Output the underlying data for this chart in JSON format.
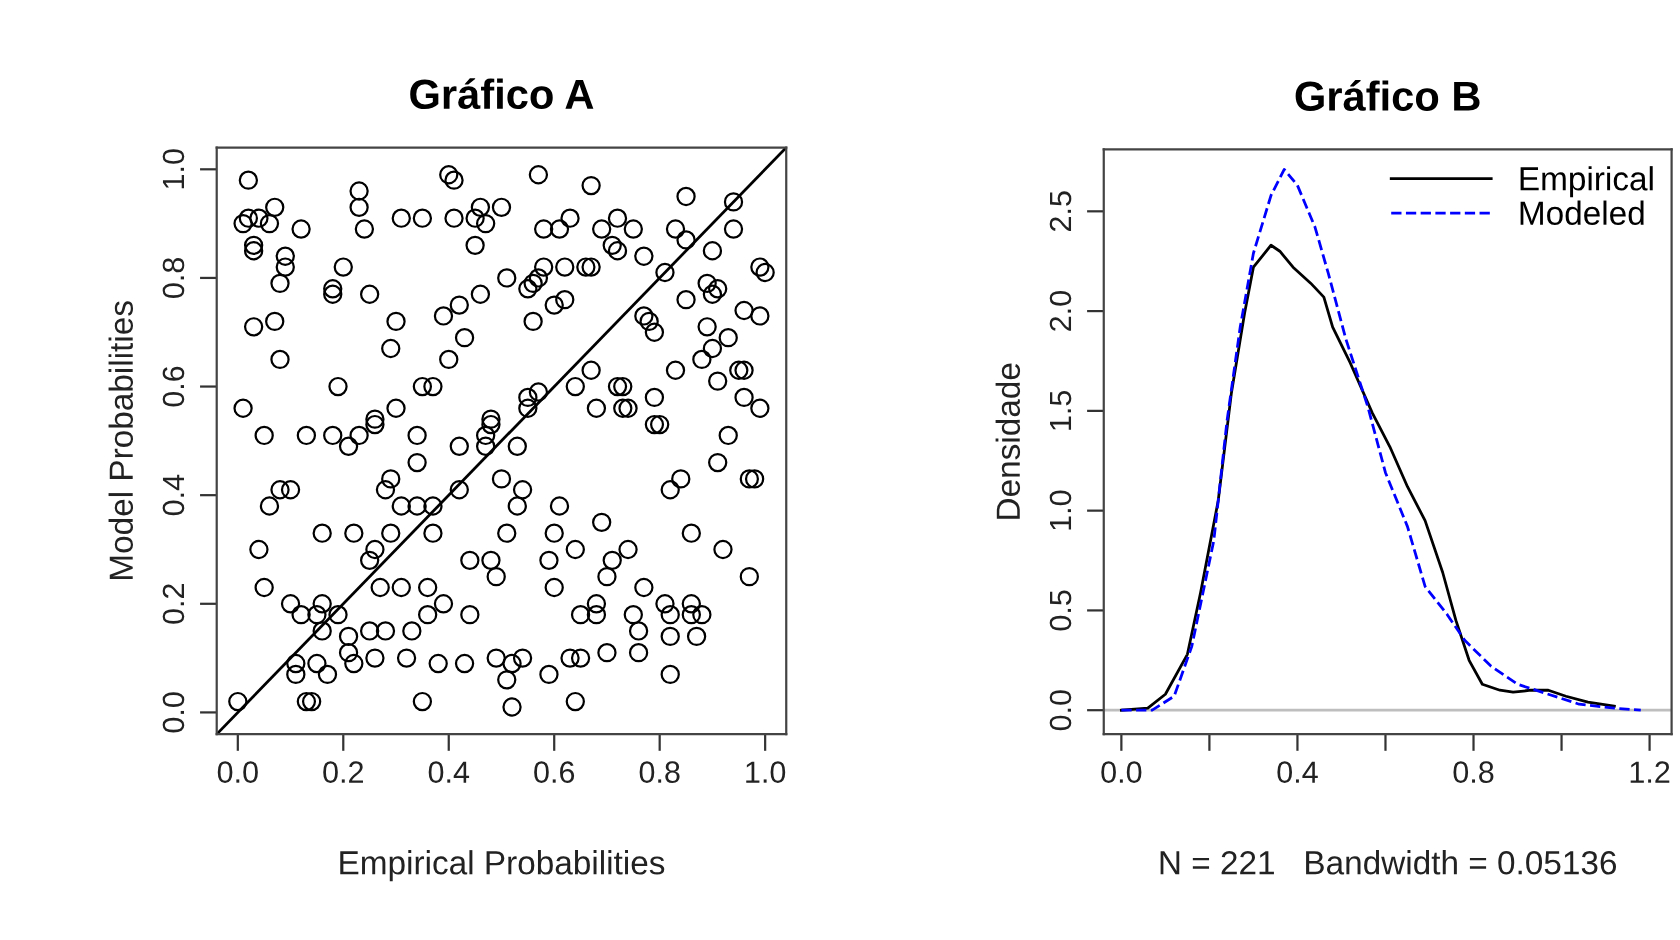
{
  "chart_data": [
    {
      "type": "scatter",
      "title": "Gráfico A",
      "xlabel": "Empirical Probabilities",
      "ylabel": "Model Probabilities",
      "xlim": [
        -0.04,
        1.04
      ],
      "ylim": [
        -0.04,
        1.04
      ],
      "xticks": [
        {
          "value": 0,
          "label": "0.0"
        },
        0.2,
        0.4,
        0.6,
        0.8,
        {
          "value": 1,
          "label": "1.0"
        }
      ],
      "yticks": [
        {
          "value": 0,
          "label": "0.0"
        },
        0.2,
        0.4,
        0.6,
        0.8,
        {
          "value": 1,
          "label": "1.0"
        }
      ],
      "grid": false,
      "legend": false,
      "series": [
        {
          "marker": "circle",
          "color": "#000000",
          "x": [
            0.02,
            0.4,
            0.41,
            0.57,
            0.67,
            0.85,
            0.94,
            0.23,
            0.23,
            0.24,
            0.07,
            0.02,
            0.04,
            0.01,
            0.06,
            0.12,
            0.31,
            0.35,
            0.41,
            0.45,
            0.46,
            0.47,
            0.5,
            0.58,
            0.61,
            0.63,
            0.69,
            0.72,
            0.75,
            0.83,
            0.94,
            0.45,
            0.03,
            0.03,
            0.09,
            0.09,
            0.2,
            0.71,
            0.72,
            0.77,
            0.81,
            0.85,
            0.9,
            0.99,
            1.0,
            0.56,
            0.58,
            0.62,
            0.66,
            0.67,
            0.55,
            0.57,
            0.51,
            0.46,
            0.42,
            0.18,
            0.18,
            0.08,
            0.25,
            0.89,
            0.91,
            0.9,
            0.85,
            0.77,
            0.78,
            0.79,
            0.96,
            0.99,
            0.62,
            0.6,
            0.56,
            0.39,
            0.3,
            0.07,
            0.03,
            0.43,
            0.29,
            0.4,
            0.08,
            0.89,
            0.93,
            0.9,
            0.88,
            0.83,
            0.95,
            0.96,
            0.91,
            0.73,
            0.72,
            0.67,
            0.64,
            0.19,
            0.35,
            0.37,
            0.55,
            0.57,
            0.55,
            0.79,
            0.68,
            0.73,
            0.74,
            0.96,
            0.99,
            0.01,
            0.48,
            0.3,
            0.26,
            0.05,
            0.13,
            0.18,
            0.21,
            0.23,
            0.26,
            0.34,
            0.34,
            0.42,
            0.47,
            0.47,
            0.48,
            0.53,
            0.79,
            0.8,
            0.93,
            0.91,
            0.97,
            0.98,
            0.84,
            0.82,
            0.06,
            0.08,
            0.1,
            0.28,
            0.29,
            0.31,
            0.34,
            0.37,
            0.42,
            0.5,
            0.54,
            0.53,
            0.61,
            0.69,
            0.04,
            0.16,
            0.22,
            0.29,
            0.26,
            0.25,
            0.37,
            0.44,
            0.48,
            0.49,
            0.51,
            0.6,
            0.64,
            0.59,
            0.71,
            0.7,
            0.74,
            0.86,
            0.92,
            0.97,
            0.05,
            0.1,
            0.16,
            0.12,
            0.15,
            0.19,
            0.16,
            0.27,
            0.31,
            0.36,
            0.39,
            0.36,
            0.33,
            0.25,
            0.28,
            0.21,
            0.21,
            0.44,
            0.6,
            0.68,
            0.65,
            0.68,
            0.77,
            0.81,
            0.82,
            0.86,
            0.86,
            0.88,
            0.75,
            0.76,
            0.82,
            0.87,
            0.76,
            0.7,
            0.11,
            0.11,
            0.15,
            0.17,
            0.22,
            0.26,
            0.32,
            0.38,
            0.43,
            0.49,
            0.52,
            0.54,
            0.51,
            0.59,
            0.63,
            0.65,
            0.82,
            0.0,
            0.13,
            0.14,
            0.35,
            0.52,
            0.64
          ],
          "values": [
            0.98,
            0.99,
            0.98,
            0.99,
            0.97,
            0.95,
            0.94,
            0.96,
            0.93,
            0.89,
            0.93,
            0.91,
            0.91,
            0.9,
            0.9,
            0.89,
            0.91,
            0.91,
            0.91,
            0.91,
            0.93,
            0.9,
            0.93,
            0.89,
            0.89,
            0.91,
            0.89,
            0.91,
            0.89,
            0.89,
            0.89,
            0.86,
            0.86,
            0.85,
            0.84,
            0.82,
            0.82,
            0.86,
            0.85,
            0.84,
            0.81,
            0.87,
            0.85,
            0.82,
            0.81,
            0.79,
            0.82,
            0.82,
            0.82,
            0.82,
            0.78,
            0.8,
            0.8,
            0.77,
            0.75,
            0.78,
            0.77,
            0.79,
            0.77,
            0.79,
            0.78,
            0.77,
            0.76,
            0.73,
            0.72,
            0.7,
            0.74,
            0.73,
            0.76,
            0.75,
            0.72,
            0.73,
            0.72,
            0.72,
            0.71,
            0.69,
            0.67,
            0.65,
            0.65,
            0.71,
            0.69,
            0.67,
            0.65,
            0.63,
            0.63,
            0.63,
            0.61,
            0.6,
            0.6,
            0.63,
            0.6,
            0.6,
            0.6,
            0.6,
            0.58,
            0.59,
            0.56,
            0.58,
            0.56,
            0.56,
            0.56,
            0.58,
            0.56,
            0.56,
            0.54,
            0.56,
            0.54,
            0.51,
            0.51,
            0.51,
            0.49,
            0.51,
            0.53,
            0.51,
            0.46,
            0.49,
            0.51,
            0.49,
            0.53,
            0.49,
            0.53,
            0.53,
            0.51,
            0.46,
            0.43,
            0.43,
            0.43,
            0.41,
            0.38,
            0.41,
            0.41,
            0.41,
            0.43,
            0.38,
            0.38,
            0.38,
            0.41,
            0.43,
            0.41,
            0.38,
            0.38,
            0.35,
            0.3,
            0.33,
            0.33,
            0.33,
            0.3,
            0.28,
            0.33,
            0.28,
            0.28,
            0.25,
            0.33,
            0.33,
            0.3,
            0.28,
            0.28,
            0.25,
            0.3,
            0.33,
            0.3,
            0.25,
            0.23,
            0.2,
            0.2,
            0.18,
            0.18,
            0.18,
            0.15,
            0.23,
            0.23,
            0.23,
            0.2,
            0.18,
            0.15,
            0.15,
            0.15,
            0.14,
            0.11,
            0.18,
            0.23,
            0.2,
            0.18,
            0.18,
            0.23,
            0.2,
            0.18,
            0.2,
            0.18,
            0.18,
            0.18,
            0.15,
            0.14,
            0.14,
            0.11,
            0.11,
            0.09,
            0.07,
            0.09,
            0.07,
            0.09,
            0.1,
            0.1,
            0.09,
            0.09,
            0.1,
            0.09,
            0.1,
            0.06,
            0.07,
            0.1,
            0.1,
            0.07,
            0.02,
            0.02,
            0.02,
            0.02,
            0.01,
            0.02
          ]
        },
        {
          "type": "line",
          "color": "#000000",
          "line_style": "solid",
          "x": [
            -0.04,
            1.04
          ],
          "values": [
            -0.04,
            1.04
          ]
        }
      ]
    },
    {
      "type": "line",
      "title": "Gráfico B",
      "xlabel": "N = 221   Bandwidth = 0.05136",
      "ylabel": "Densidade",
      "xlim": [
        -0.04,
        1.25
      ],
      "ylim": [
        -0.12,
        2.81
      ],
      "xticks": [
        {
          "value": 0,
          "label": "0.0"
        },
        {
          "value": 0.2,
          "label": null
        },
        0.4,
        {
          "value": 0.6,
          "label": null
        },
        0.8,
        {
          "value": 1,
          "label": null
        },
        1.2
      ],
      "yticks": [
        {
          "value": 0,
          "label": "0.0"
        },
        0.5,
        {
          "value": 1,
          "label": "1.0"
        },
        1.5,
        {
          "value": 2,
          "label": "2.0"
        },
        2.5
      ],
      "grid": false,
      "legend": "top right",
      "ref_lines": [
        {
          "axis": "y",
          "value": 0,
          "color": "#bebebe",
          "line_style": "solid"
        }
      ],
      "series": [
        {
          "name": "Empirical",
          "color": "#000000",
          "line_style": "solid",
          "x": [
            0.0,
            0.06,
            0.1,
            0.15,
            0.18,
            0.22,
            0.25,
            0.28,
            0.3,
            0.34,
            0.36,
            0.39,
            0.43,
            0.46,
            0.48,
            0.52,
            0.57,
            0.61,
            0.65,
            0.69,
            0.73,
            0.76,
            0.79,
            0.82,
            0.86,
            0.89,
            0.93,
            0.97,
            1.01,
            1.06,
            1.12
          ],
          "values": [
            0.0,
            0.01,
            0.08,
            0.28,
            0.59,
            1.05,
            1.59,
            1.99,
            2.22,
            2.33,
            2.3,
            2.22,
            2.14,
            2.07,
            1.92,
            1.74,
            1.49,
            1.32,
            1.12,
            0.95,
            0.69,
            0.45,
            0.25,
            0.13,
            0.1,
            0.09,
            0.1,
            0.1,
            0.07,
            0.04,
            0.02
          ]
        },
        {
          "name": "Modeled",
          "color": "#0000ff",
          "line_style": "dashed",
          "x": [
            0.0,
            0.07,
            0.12,
            0.16,
            0.21,
            0.24,
            0.27,
            0.3,
            0.34,
            0.37,
            0.4,
            0.44,
            0.47,
            0.51,
            0.56,
            0.6,
            0.65,
            0.69,
            0.74,
            0.78,
            0.84,
            0.9,
            0.97,
            1.04,
            1.12,
            1.18
          ],
          "values": [
            0.0,
            0.0,
            0.07,
            0.32,
            0.85,
            1.45,
            1.92,
            2.29,
            2.58,
            2.71,
            2.63,
            2.42,
            2.19,
            1.86,
            1.52,
            1.19,
            0.92,
            0.62,
            0.48,
            0.35,
            0.22,
            0.13,
            0.08,
            0.03,
            0.01,
            0.0
          ]
        }
      ]
    }
  ]
}
